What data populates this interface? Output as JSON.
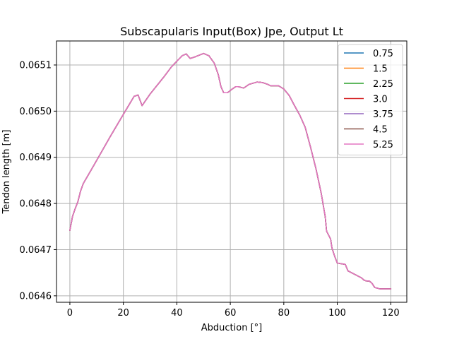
{
  "chart_data": {
    "type": "line",
    "title": "Subscapularis Input(Box) Jpe, Output Lt",
    "xlabel": "Abduction [°]",
    "ylabel": "Tendon length [m]",
    "xlim": [
      -5,
      126
    ],
    "ylim": [
      0.064586,
      0.065152
    ],
    "xticks": [
      0,
      20,
      40,
      60,
      80,
      100,
      120
    ],
    "yticks": [
      0.0646,
      0.0647,
      0.0648,
      0.0649,
      0.065,
      0.0651
    ],
    "ytick_labels": [
      "0.0646",
      "0.0647",
      "0.0648",
      "0.0649",
      "0.0650",
      "0.0651"
    ],
    "grid": true,
    "legend_position": "top-right",
    "x": [
      0,
      1,
      2,
      3,
      4,
      5,
      10,
      15,
      20,
      24,
      25.5,
      27,
      30,
      35,
      38,
      40,
      42,
      43.5,
      45,
      47,
      50,
      52,
      54,
      55.5,
      56.5,
      57.5,
      59,
      60.5,
      62,
      63,
      65,
      67,
      70,
      72,
      74,
      75,
      78,
      80,
      82,
      84,
      86,
      88,
      90,
      92,
      94,
      95.5,
      96,
      97.5,
      98,
      99,
      100,
      101,
      103,
      104,
      106,
      108,
      109,
      110,
      111,
      112,
      113,
      114,
      116,
      118,
      120
    ],
    "series": [
      {
        "name": "0.75",
        "color": "#1f77b4",
        "y": [
          0.064742,
          0.064772,
          0.064789,
          0.064804,
          0.064827,
          0.064843,
          0.064893,
          0.064944,
          0.064993,
          0.065032,
          0.065035,
          0.065012,
          0.065037,
          0.065073,
          0.065096,
          0.065108,
          0.06512,
          0.065124,
          0.065114,
          0.065118,
          0.065125,
          0.06512,
          0.065104,
          0.065079,
          0.065053,
          0.06504,
          0.06504,
          0.065047,
          0.065053,
          0.065053,
          0.06505,
          0.065058,
          0.065063,
          0.065062,
          0.065058,
          0.065055,
          0.065055,
          0.065048,
          0.065034,
          0.065012,
          0.064991,
          0.064965,
          0.064922,
          0.064876,
          0.064822,
          0.064771,
          0.06474,
          0.064723,
          0.064704,
          0.064686,
          0.064671,
          0.06467,
          0.064668,
          0.064654,
          0.064648,
          0.064642,
          0.064639,
          0.064634,
          0.064632,
          0.064632,
          0.064627,
          0.064618,
          0.064615,
          0.064615,
          0.064615
        ]
      },
      {
        "name": "1.5",
        "color": "#ff7f0e",
        "y": [
          0.064742,
          0.064772,
          0.064789,
          0.064804,
          0.064827,
          0.064843,
          0.064893,
          0.064944,
          0.064993,
          0.065032,
          0.065035,
          0.065012,
          0.065037,
          0.065073,
          0.065096,
          0.065108,
          0.06512,
          0.065124,
          0.065114,
          0.065118,
          0.065125,
          0.06512,
          0.065104,
          0.065079,
          0.065053,
          0.06504,
          0.06504,
          0.065047,
          0.065053,
          0.065053,
          0.06505,
          0.065058,
          0.065063,
          0.065062,
          0.065058,
          0.065055,
          0.065055,
          0.065048,
          0.065034,
          0.065012,
          0.064991,
          0.064965,
          0.064922,
          0.064876,
          0.064822,
          0.064771,
          0.06474,
          0.064723,
          0.064704,
          0.064686,
          0.064671,
          0.06467,
          0.064668,
          0.064654,
          0.064648,
          0.064642,
          0.064639,
          0.064634,
          0.064632,
          0.064632,
          0.064627,
          0.064618,
          0.064615,
          0.064615,
          0.064615
        ]
      },
      {
        "name": "2.25",
        "color": "#2ca02c",
        "y": [
          0.064742,
          0.064772,
          0.064789,
          0.064804,
          0.064827,
          0.064843,
          0.064893,
          0.064944,
          0.064993,
          0.065032,
          0.065035,
          0.065012,
          0.065037,
          0.065073,
          0.065096,
          0.065108,
          0.06512,
          0.065124,
          0.065114,
          0.065118,
          0.065125,
          0.06512,
          0.065104,
          0.065079,
          0.065053,
          0.06504,
          0.06504,
          0.065047,
          0.065053,
          0.065053,
          0.06505,
          0.065058,
          0.065063,
          0.065062,
          0.065058,
          0.065055,
          0.065055,
          0.065048,
          0.065034,
          0.065012,
          0.064991,
          0.064965,
          0.064922,
          0.064876,
          0.064822,
          0.064771,
          0.06474,
          0.064723,
          0.064704,
          0.064686,
          0.064671,
          0.06467,
          0.064668,
          0.064654,
          0.064648,
          0.064642,
          0.064639,
          0.064634,
          0.064632,
          0.064632,
          0.064627,
          0.064618,
          0.064615,
          0.064615,
          0.064615
        ]
      },
      {
        "name": "3.0",
        "color": "#d62728",
        "y": [
          0.064742,
          0.064772,
          0.064789,
          0.064804,
          0.064827,
          0.064843,
          0.064893,
          0.064944,
          0.064993,
          0.065032,
          0.065035,
          0.065012,
          0.065037,
          0.065073,
          0.065096,
          0.065108,
          0.06512,
          0.065124,
          0.065114,
          0.065118,
          0.065125,
          0.06512,
          0.065104,
          0.065079,
          0.065053,
          0.06504,
          0.06504,
          0.065047,
          0.065053,
          0.065053,
          0.06505,
          0.065058,
          0.065063,
          0.065062,
          0.065058,
          0.065055,
          0.065055,
          0.065048,
          0.065034,
          0.065012,
          0.064991,
          0.064965,
          0.064922,
          0.064876,
          0.064822,
          0.064771,
          0.06474,
          0.064723,
          0.064704,
          0.064686,
          0.064671,
          0.06467,
          0.064668,
          0.064654,
          0.064648,
          0.064642,
          0.064639,
          0.064634,
          0.064632,
          0.064632,
          0.064627,
          0.064618,
          0.064615,
          0.064615,
          0.064615
        ]
      },
      {
        "name": "3.75",
        "color": "#9467bd",
        "y": [
          0.064742,
          0.064772,
          0.064789,
          0.064804,
          0.064827,
          0.064843,
          0.064893,
          0.064944,
          0.064993,
          0.065032,
          0.065035,
          0.065012,
          0.065037,
          0.065073,
          0.065096,
          0.065108,
          0.06512,
          0.065124,
          0.065114,
          0.065118,
          0.065125,
          0.06512,
          0.065104,
          0.065079,
          0.065053,
          0.06504,
          0.06504,
          0.065047,
          0.065053,
          0.065053,
          0.06505,
          0.065058,
          0.065063,
          0.065062,
          0.065058,
          0.065055,
          0.065055,
          0.065048,
          0.065034,
          0.065012,
          0.064991,
          0.064965,
          0.064922,
          0.064876,
          0.064822,
          0.064771,
          0.06474,
          0.064723,
          0.064704,
          0.064686,
          0.064671,
          0.06467,
          0.064668,
          0.064654,
          0.064648,
          0.064642,
          0.064639,
          0.064634,
          0.064632,
          0.064632,
          0.064627,
          0.064618,
          0.064615,
          0.064615,
          0.064615
        ]
      },
      {
        "name": "4.5",
        "color": "#8c564b",
        "y": [
          0.064742,
          0.064772,
          0.064789,
          0.064804,
          0.064827,
          0.064843,
          0.064893,
          0.064944,
          0.064993,
          0.065032,
          0.065035,
          0.065012,
          0.065037,
          0.065073,
          0.065096,
          0.065108,
          0.06512,
          0.065124,
          0.065114,
          0.065118,
          0.065125,
          0.06512,
          0.065104,
          0.065079,
          0.065053,
          0.06504,
          0.06504,
          0.065047,
          0.065053,
          0.065053,
          0.06505,
          0.065058,
          0.065063,
          0.065062,
          0.065058,
          0.065055,
          0.065055,
          0.065048,
          0.065034,
          0.065012,
          0.064991,
          0.064965,
          0.064922,
          0.064876,
          0.064822,
          0.064771,
          0.06474,
          0.064723,
          0.064704,
          0.064686,
          0.064671,
          0.06467,
          0.064668,
          0.064654,
          0.064648,
          0.064642,
          0.064639,
          0.064634,
          0.064632,
          0.064632,
          0.064627,
          0.064618,
          0.064615,
          0.064615,
          0.064615
        ]
      },
      {
        "name": "5.25",
        "color": "#e377c2",
        "y": [
          0.064742,
          0.064772,
          0.064789,
          0.064804,
          0.064827,
          0.064843,
          0.064893,
          0.064944,
          0.064993,
          0.065032,
          0.065035,
          0.065012,
          0.065037,
          0.065073,
          0.065096,
          0.065108,
          0.06512,
          0.065124,
          0.065114,
          0.065118,
          0.065125,
          0.06512,
          0.065104,
          0.065079,
          0.065053,
          0.06504,
          0.06504,
          0.065047,
          0.065053,
          0.065053,
          0.06505,
          0.065058,
          0.065063,
          0.065062,
          0.065058,
          0.065055,
          0.065055,
          0.065048,
          0.065034,
          0.065012,
          0.064991,
          0.064965,
          0.064922,
          0.064876,
          0.064822,
          0.064771,
          0.06474,
          0.064723,
          0.064704,
          0.064686,
          0.064671,
          0.06467,
          0.064668,
          0.064654,
          0.064648,
          0.064642,
          0.064639,
          0.064634,
          0.064632,
          0.064632,
          0.064627,
          0.064618,
          0.064615,
          0.064615,
          0.064615
        ]
      }
    ]
  }
}
